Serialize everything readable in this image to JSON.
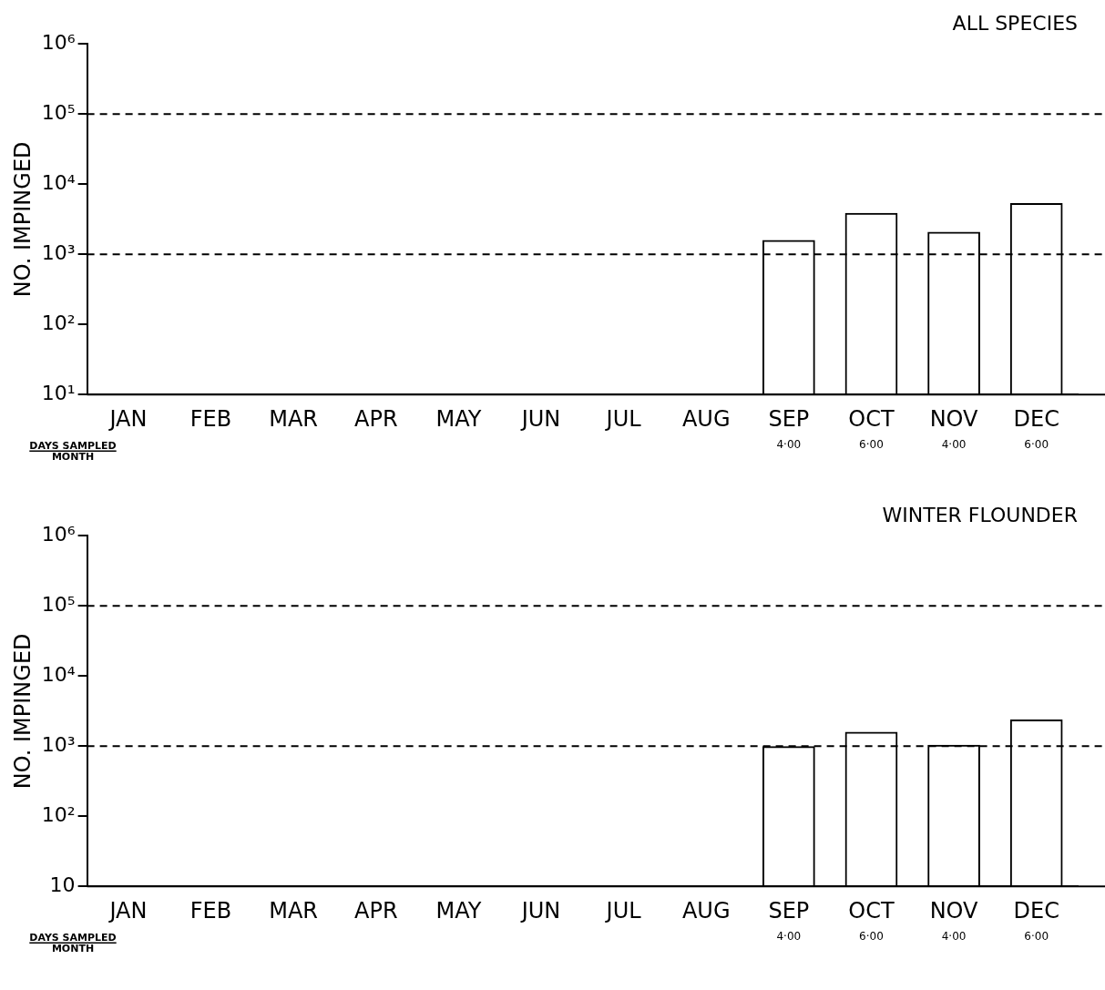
{
  "chart_data": [
    {
      "type": "bar",
      "title": "ALL SPECIES",
      "ylabel": "NO. IMPINGED",
      "categories": [
        "JAN",
        "FEB",
        "MAR",
        "APR",
        "MAY",
        "JUN",
        "JUL",
        "AUG",
        "SEP\n4·00",
        "OCT\n6·00",
        "NOV\n4·00",
        "DEC\n6·00"
      ],
      "series": [
        {
          "color": "#000000",
          "values": [
            null,
            null,
            null,
            null,
            null,
            null,
            null,
            null,
            1600,
            3900,
            2100,
            5400
          ]
        }
      ],
      "log": true,
      "ylim": [
        10,
        1000000
      ],
      "yticks": [
        {
          "value": 10,
          "label": "10¹"
        },
        {
          "value": 100,
          "label": "10²"
        },
        {
          "value": 1000,
          "label": "10³"
        },
        {
          "value": 10000,
          "label": "10⁴"
        },
        {
          "value": 100000,
          "label": "10⁵"
        },
        {
          "value": 1000000,
          "label": "10⁶"
        }
      ],
      "grid": false,
      "ref_lines": [
        {
          "axis": "y",
          "value": 1000,
          "color": "#000000",
          "line_style": "dashed"
        },
        {
          "axis": "y",
          "value": 100000,
          "color": "#000000",
          "line_style": "dashed"
        }
      ],
      "annotations": [
        "DAYS SAMPLED",
        "MONTH"
      ]
    },
    {
      "type": "bar",
      "title": "WINTER FLOUNDER",
      "ylabel": "NO. IMPINGED",
      "categories": [
        "JAN",
        "FEB",
        "MAR",
        "APR",
        "MAY",
        "JUN",
        "JUL",
        "AUG",
        "SEP\n4·00",
        "OCT\n6·00",
        "NOV\n4·00",
        "DEC\n6·00"
      ],
      "series": [
        {
          "color": "#000000",
          "values": [
            null,
            null,
            null,
            null,
            null,
            null,
            null,
            null,
            1000,
            1600,
            1050,
            2400
          ]
        }
      ],
      "log": true,
      "ylim": [
        10,
        1000000
      ],
      "yticks": [
        10,
        {
          "value": 100,
          "label": "10²"
        },
        {
          "value": 1000,
          "label": "10³"
        },
        {
          "value": 10000,
          "label": "10⁴"
        },
        {
          "value": 100000,
          "label": "10⁵"
        },
        {
          "value": 1000000,
          "label": "10⁶"
        }
      ],
      "grid": false,
      "ref_lines": [
        {
          "axis": "y",
          "value": 1000,
          "color": "#000000",
          "line_style": "dashed"
        },
        {
          "axis": "y",
          "value": 100000,
          "color": "#000000",
          "line_style": "dashed"
        }
      ],
      "annotations": [
        "DAYS SAMPLED",
        "MONTH"
      ]
    }
  ]
}
